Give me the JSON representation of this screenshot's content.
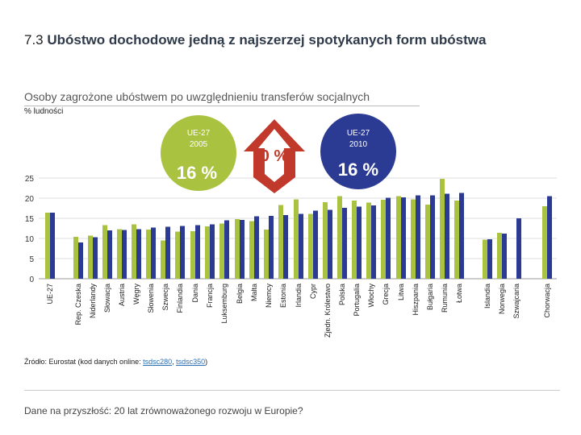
{
  "header": {
    "title_number": "7.3",
    "title_text": "Ubóstwo dochodowe jedną z najszerzej spotykanych form ubóstwa"
  },
  "chart_subtitle": "Osoby zagrożone ubóstwem po uwzględnieniu transferów socjalnych",
  "unit_label": "% ludności",
  "source": {
    "prefix": "Źródło: Eurostat (kod danych online: ",
    "link1": "tsdsc280",
    "sep": ", ",
    "link2": "tsdsc350",
    "suffix": ")"
  },
  "footer": "Dane na przyszłość: 20 lat zrównoważonego rozwoju w Europie?",
  "colors": {
    "series_2005": "#a9c23f",
    "series_2010": "#2b3b93",
    "bubble_left": "#a9c23f",
    "bubble_right": "#2b3b93",
    "arrow": "#c0392b"
  },
  "chart_data": {
    "type": "bar",
    "ylim": [
      0,
      25
    ],
    "yticks": [
      0,
      5,
      10,
      15,
      20,
      25
    ],
    "grid": true,
    "categories": [
      "UE-27",
      "Rep. Czeska",
      "Niderlandy",
      "Słowacja",
      "Austria",
      "Węgry",
      "Słowenia",
      "Szwecja",
      "Finlandia",
      "Dania",
      "Francja",
      "Luksemburg",
      "Belgia",
      "Malta",
      "Niemcy",
      "Estonia",
      "Irlandia",
      "Cypr",
      "Zjedn. Królestwo",
      "Polska",
      "Portugalia",
      "Włochy",
      "Grecja",
      "Litwa",
      "Hiszpania",
      "Bułgaria",
      "Rumunia",
      "Łotwa",
      "Islandia",
      "Norwegia",
      "Szwajcaria",
      "Chorwacja"
    ],
    "series": [
      {
        "values": [
          16.4,
          10.4,
          10.7,
          13.3,
          12.3,
          13.5,
          12.2,
          9.5,
          11.7,
          11.8,
          13.0,
          13.7,
          14.8,
          14.3,
          12.2,
          18.3,
          19.7,
          16.1,
          19.0,
          20.5,
          19.4,
          18.9,
          19.6,
          20.5,
          19.7,
          18.4,
          24.8,
          19.4,
          9.7,
          11.4,
          null,
          18.0
        ]
      },
      {
        "values": [
          16.4,
          9.0,
          10.3,
          12.0,
          12.1,
          12.3,
          12.7,
          12.9,
          13.1,
          13.3,
          13.5,
          14.5,
          14.6,
          15.5,
          15.6,
          15.8,
          16.1,
          16.9,
          17.1,
          17.6,
          17.9,
          18.2,
          20.1,
          20.2,
          20.7,
          20.7,
          21.1,
          21.3,
          9.8,
          11.2,
          15.0,
          20.5
        ]
      }
    ],
    "annotations": [
      {
        "label": "UE-27",
        "year": "2005",
        "value": "16 %"
      },
      {
        "label": "0 %"
      },
      {
        "label": "UE-27",
        "year": "2010",
        "value": "16 %"
      }
    ]
  }
}
